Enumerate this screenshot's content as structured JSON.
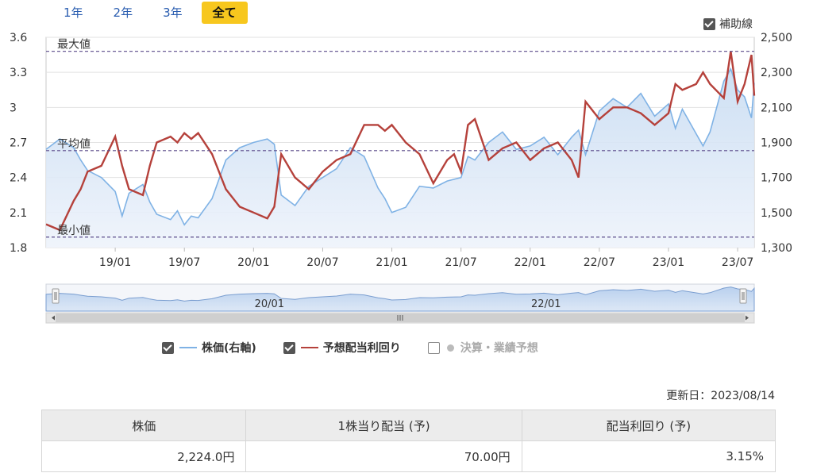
{
  "tabs": [
    {
      "label": "1年",
      "active": false
    },
    {
      "label": "2年",
      "active": false
    },
    {
      "label": "3年",
      "active": false
    },
    {
      "label": "全て",
      "active": true
    }
  ],
  "aux_lines": {
    "label": "補助線",
    "checked": true
  },
  "legend": {
    "price": {
      "label": "株価(右軸)",
      "color": "#7fb2e5",
      "checked": true
    },
    "yield": {
      "label": "予想配当利回り",
      "color": "#b5413b",
      "checked": true
    },
    "earnings": {
      "label": "決算・業績予想",
      "checked": false
    }
  },
  "updated": "更新日：2023/08/14",
  "summary": {
    "headers": [
      "株価",
      "1株当り配当 (予)",
      "配当利回り (予)"
    ],
    "values": [
      "2,224.0円",
      "70.00円",
      "3.15%"
    ]
  },
  "chart_data": {
    "type": "line",
    "x_labels": [
      "19/01",
      "19/07",
      "20/01",
      "20/07",
      "21/01",
      "21/07",
      "22/01",
      "22/07",
      "23/01",
      "23/07"
    ],
    "navigator_labels": [
      "20/01",
      "22/01"
    ],
    "left_axis": {
      "ylim": [
        1.8,
        3.6
      ],
      "ticks": [
        "1.8",
        "2.1",
        "2.4",
        "2.7",
        "3",
        "3.3",
        "3.6"
      ]
    },
    "right_axis": {
      "ylim": [
        1300,
        2500
      ],
      "ticks": [
        "1,300",
        "1,500",
        "1,700",
        "1,900",
        "2,100",
        "2,300",
        "2,500"
      ]
    },
    "reference_lines": [
      {
        "label": "最大値",
        "value": 3.48
      },
      {
        "label": "平均値",
        "value": 2.63
      },
      {
        "label": "最小値",
        "value": 1.89
      }
    ],
    "series": [
      {
        "name": "株価(右軸)",
        "axis": "right",
        "color": "#7fb2e5",
        "x": [
          2018.5,
          2018.6,
          2018.7,
          2018.75,
          2018.8,
          2018.9,
          2019.0,
          2019.05,
          2019.1,
          2019.2,
          2019.25,
          2019.3,
          2019.4,
          2019.45,
          2019.5,
          2019.55,
          2019.6,
          2019.7,
          2019.8,
          2019.9,
          2020.0,
          2020.1,
          2020.15,
          2020.2,
          2020.3,
          2020.4,
          2020.5,
          2020.6,
          2020.7,
          2020.8,
          2020.9,
          2020.95,
          2021.0,
          2021.1,
          2021.2,
          2021.3,
          2021.4,
          2021.5,
          2021.55,
          2021.6,
          2021.7,
          2021.8,
          2021.9,
          2022.0,
          2022.1,
          2022.2,
          2022.3,
          2022.35,
          2022.4,
          2022.5,
          2022.6,
          2022.7,
          2022.8,
          2022.9,
          2023.0,
          2023.05,
          2023.1,
          2023.2,
          2023.25,
          2023.3,
          2023.4,
          2023.45,
          2023.5,
          2023.55,
          2023.6,
          2023.62
        ],
        "y": [
          1860,
          1920,
          1870,
          1800,
          1740,
          1700,
          1620,
          1480,
          1610,
          1660,
          1560,
          1490,
          1460,
          1510,
          1430,
          1480,
          1470,
          1580,
          1800,
          1870,
          1900,
          1920,
          1890,
          1600,
          1540,
          1650,
          1700,
          1750,
          1870,
          1820,
          1640,
          1580,
          1500,
          1530,
          1650,
          1640,
          1680,
          1700,
          1820,
          1800,
          1900,
          1960,
          1860,
          1880,
          1930,
          1830,
          1930,
          1970,
          1830,
          2080,
          2150,
          2100,
          2180,
          2050,
          2120,
          1980,
          2090,
          1950,
          1880,
          1960,
          2250,
          2320,
          2200,
          2160,
          2040,
          2240
        ]
      },
      {
        "name": "予想配当利回り",
        "axis": "left",
        "color": "#b5413b",
        "x": [
          2018.5,
          2018.6,
          2018.7,
          2018.75,
          2018.8,
          2018.9,
          2019.0,
          2019.05,
          2019.1,
          2019.2,
          2019.25,
          2019.3,
          2019.4,
          2019.45,
          2019.5,
          2019.55,
          2019.6,
          2019.7,
          2019.8,
          2019.9,
          2020.0,
          2020.1,
          2020.15,
          2020.2,
          2020.3,
          2020.4,
          2020.5,
          2020.6,
          2020.7,
          2020.8,
          2020.9,
          2020.95,
          2021.0,
          2021.1,
          2021.2,
          2021.3,
          2021.4,
          2021.45,
          2021.5,
          2021.55,
          2021.6,
          2021.7,
          2021.8,
          2021.9,
          2022.0,
          2022.1,
          2022.2,
          2022.3,
          2022.35,
          2022.4,
          2022.5,
          2022.6,
          2022.7,
          2022.8,
          2022.9,
          2023.0,
          2023.05,
          2023.1,
          2023.2,
          2023.25,
          2023.3,
          2023.4,
          2023.45,
          2023.5,
          2023.55,
          2023.6,
          2023.62
        ],
        "y": [
          2.0,
          1.95,
          2.2,
          2.3,
          2.45,
          2.5,
          2.75,
          2.5,
          2.3,
          2.25,
          2.5,
          2.7,
          2.75,
          2.7,
          2.78,
          2.73,
          2.78,
          2.6,
          2.3,
          2.15,
          2.1,
          2.05,
          2.15,
          2.6,
          2.4,
          2.3,
          2.45,
          2.55,
          2.6,
          2.85,
          2.85,
          2.8,
          2.85,
          2.7,
          2.6,
          2.35,
          2.55,
          2.6,
          2.45,
          2.85,
          2.9,
          2.55,
          2.65,
          2.7,
          2.55,
          2.65,
          2.7,
          2.55,
          2.4,
          3.05,
          2.9,
          3.0,
          3.0,
          2.95,
          2.85,
          2.95,
          3.2,
          3.15,
          3.2,
          3.3,
          3.2,
          3.08,
          3.48,
          3.05,
          3.2,
          3.45,
          3.1
        ]
      }
    ]
  }
}
